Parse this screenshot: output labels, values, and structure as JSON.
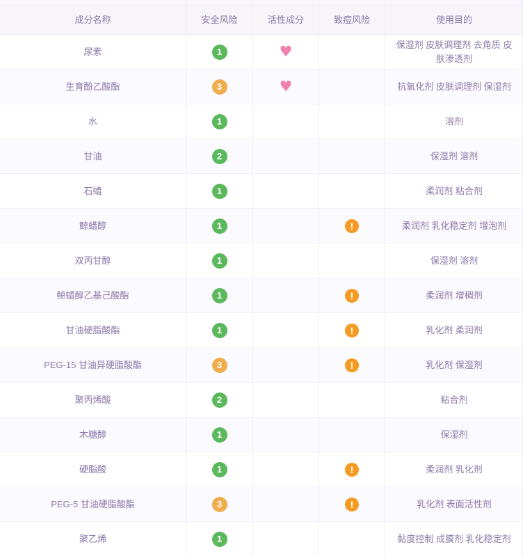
{
  "colors": {
    "text_purple": "#8b79a8",
    "divider": "#efecf5",
    "row_divider": "#f4f2f8",
    "alt_row_tint": "#fbfafe",
    "header_tint": "#f7f5fa",
    "safe_green": "#5cb85c",
    "risk_orange": "#f0ad4e",
    "warning_orange": "#f59a23",
    "heart_pink": "#ef7fae"
  },
  "icons": {
    "active_ingredient": "heart-icon",
    "acne_risk": "exclamation-icon",
    "heart_glyph": "♥",
    "warning_glyph": "!"
  },
  "table": {
    "columns": [
      "成分名称",
      "安全风险",
      "活性成分",
      "致痘风险",
      "使用目的"
    ],
    "rows": [
      {
        "name": "尿素",
        "risk": "1",
        "risk_color": "green",
        "active": true,
        "acne": false,
        "purpose": "保湿剂 皮肤调理剂 去角质 皮肤渗透剂"
      },
      {
        "name": "生育酚乙酸酯",
        "risk": "3",
        "risk_color": "orange",
        "active": true,
        "acne": false,
        "purpose": "抗氧化剂 皮肤调理剂 保湿剂"
      },
      {
        "name": "水",
        "risk": "1",
        "risk_color": "green",
        "active": false,
        "acne": false,
        "purpose": "溶剂"
      },
      {
        "name": "甘油",
        "risk": "2",
        "risk_color": "green",
        "active": false,
        "acne": false,
        "purpose": "保湿剂 溶剂"
      },
      {
        "name": "石蜡",
        "risk": "1",
        "risk_color": "green",
        "active": false,
        "acne": false,
        "purpose": "柔润剂 粘合剂"
      },
      {
        "name": "鲸蜡醇",
        "risk": "1",
        "risk_color": "green",
        "active": false,
        "acne": true,
        "purpose": "柔润剂 乳化稳定剂 增泡剂"
      },
      {
        "name": "双丙甘醇",
        "risk": "1",
        "risk_color": "green",
        "active": false,
        "acne": false,
        "purpose": "保湿剂 溶剂"
      },
      {
        "name": "鲸蜡醇乙基己酸酯",
        "risk": "1",
        "risk_color": "green",
        "active": false,
        "acne": true,
        "purpose": "柔润剂 增稠剂"
      },
      {
        "name": "甘油硬脂酸酯",
        "risk": "1",
        "risk_color": "green",
        "active": false,
        "acne": true,
        "purpose": "乳化剂 柔润剂"
      },
      {
        "name": "PEG-15 甘油异硬脂酸酯",
        "risk": "3",
        "risk_color": "orange",
        "active": false,
        "acne": true,
        "purpose": "乳化剂 保湿剂"
      },
      {
        "name": "聚丙烯酸",
        "risk": "2",
        "risk_color": "green",
        "active": false,
        "acne": false,
        "purpose": "粘合剂"
      },
      {
        "name": "木糖醇",
        "risk": "1",
        "risk_color": "green",
        "active": false,
        "acne": false,
        "purpose": "保湿剂"
      },
      {
        "name": "硬脂酸",
        "risk": "1",
        "risk_color": "green",
        "active": false,
        "acne": true,
        "purpose": "柔润剂 乳化剂"
      },
      {
        "name": "PEG-5 甘油硬脂酸酯",
        "risk": "3",
        "risk_color": "orange",
        "active": false,
        "acne": true,
        "purpose": "乳化剂 表面活性剂"
      },
      {
        "name": "聚乙烯",
        "risk": "1",
        "risk_color": "green",
        "active": false,
        "acne": false,
        "purpose": "黏度控制 成膜剂 乳化稳定剂"
      }
    ]
  }
}
